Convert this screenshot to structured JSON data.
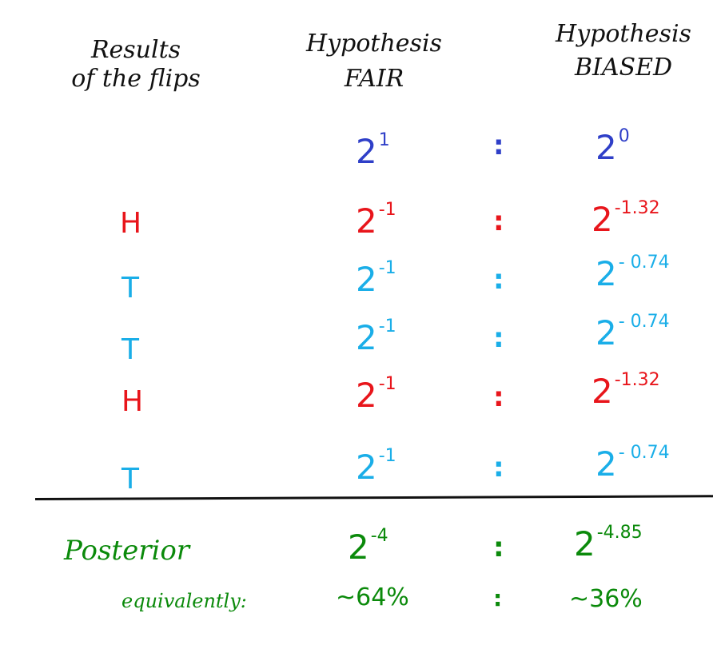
{
  "headers": {
    "results": [
      "Results",
      "of the flips"
    ],
    "fair": [
      "Hypothesis",
      "FAIR"
    ],
    "biased": [
      "Hypothesis",
      "BIASED"
    ]
  },
  "separator": ":",
  "prior": {
    "fair_base": "2",
    "fair_exp": "1",
    "biased_base": "2",
    "biased_exp": "0"
  },
  "flips": [
    {
      "result": "H",
      "fair_base": "2",
      "fair_exp": "-1",
      "biased_base": "2",
      "biased_exp": "-1.32",
      "color": "#e8151b"
    },
    {
      "result": "T",
      "fair_base": "2",
      "fair_exp": "-1",
      "biased_base": "2",
      "biased_exp": "- 0.74",
      "color": "#1aaee8"
    },
    {
      "result": "T",
      "fair_base": "2",
      "fair_exp": "-1",
      "biased_base": "2",
      "biased_exp": "- 0.74",
      "color": "#1aaee8"
    },
    {
      "result": "H",
      "fair_base": "2",
      "fair_exp": "-1",
      "biased_base": "2",
      "biased_exp": "-1.32",
      "color": "#e8151b"
    },
    {
      "result": "T",
      "fair_base": "2",
      "fair_exp": "-1",
      "biased_base": "2",
      "biased_exp": "- 0.74",
      "color": "#1aaee8"
    }
  ],
  "posterior": {
    "label": "Posterior",
    "fair_base": "2",
    "fair_exp": "-4",
    "biased_base": "2",
    "biased_exp": "-4.85"
  },
  "equivalently": {
    "label": "equivalently:",
    "fair": "~64%",
    "biased": "~36%"
  },
  "colors": {
    "prior": "#2f3fc8",
    "heads": "#e8151b",
    "tails": "#1aaee8",
    "posterior": "#0b8a0b"
  }
}
